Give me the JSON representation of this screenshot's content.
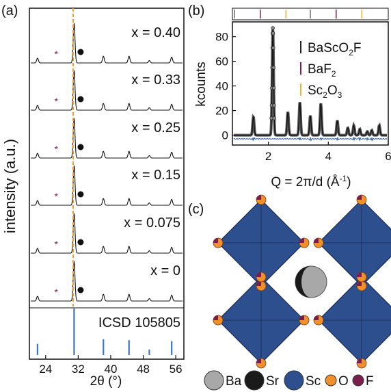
{
  "panels": {
    "a": {
      "label": "(a)",
      "ylabel": "intensity (a.u.)",
      "xlabel": "2θ (°)",
      "xticks": [
        "24",
        "32",
        "40",
        "48",
        "56"
      ],
      "reference_label": "ICSD 105805",
      "sample_labels": [
        "x = 0.40",
        "x = 0.33",
        "x = 0.25",
        "x = 0.15",
        "x = 0.075",
        "x = 0"
      ]
    },
    "b": {
      "label": "(b)",
      "ylabel": "kcounts",
      "xlabel": "Q = 2π/d (Å⁻¹)",
      "yticks": [
        "0",
        "20",
        "40",
        "60",
        "80"
      ],
      "xticks": [
        "2",
        "4",
        "6"
      ],
      "legend": [
        {
          "name": "BaScO2F",
          "color": "#222222"
        },
        {
          "name": "BaF2",
          "color": "#7a1f4d"
        },
        {
          "name": "Sc2O3",
          "color": "#f2b233"
        }
      ]
    },
    "c": {
      "label": "(c)",
      "atom_legend": [
        {
          "name": "Ba",
          "color": "#a8a8a8"
        },
        {
          "name": "Sr",
          "color": "#1a1a1a"
        },
        {
          "name": "Sc",
          "color": "#2d4f8e"
        },
        {
          "name": "O",
          "color": "#f0902a"
        },
        {
          "name": "F",
          "color": "#7a1f4d"
        }
      ]
    }
  },
  "colors": {
    "reference_bars": "#3a78c9",
    "dashed_line": "#f0a030",
    "impurity_star": "#7a1f4d",
    "fit_line": "#2a5aa0",
    "octahedron": "#2d4f8e"
  },
  "chart_data": [
    {
      "type": "line",
      "panel": "a",
      "title": "",
      "xlabel": "2θ (°)",
      "ylabel": "intensity (a.u.)",
      "xlim": [
        20,
        58
      ],
      "series": [
        {
          "name": "x = 0.40",
          "peaks": [
            [
              22,
              0.12
            ],
            [
              31,
              1.0
            ],
            [
              38.2,
              0.17
            ],
            [
              44.5,
              0.17
            ],
            [
              49.5,
              0.06
            ],
            [
              55,
              0.15
            ]
          ]
        },
        {
          "name": "x = 0.33",
          "peaks": [
            [
              22,
              0.12
            ],
            [
              31,
              1.0
            ],
            [
              38.2,
              0.17
            ],
            [
              44.5,
              0.17
            ],
            [
              49.5,
              0.06
            ],
            [
              55,
              0.15
            ]
          ]
        },
        {
          "name": "x = 0.25",
          "peaks": [
            [
              22,
              0.12
            ],
            [
              31,
              1.0
            ],
            [
              38.2,
              0.17
            ],
            [
              44.5,
              0.17
            ],
            [
              49.5,
              0.06
            ],
            [
              55,
              0.15
            ]
          ]
        },
        {
          "name": "x = 0.15",
          "peaks": [
            [
              22,
              0.12
            ],
            [
              31,
              1.0
            ],
            [
              38.2,
              0.17
            ],
            [
              44.5,
              0.17
            ],
            [
              49.5,
              0.06
            ],
            [
              55,
              0.15
            ]
          ]
        },
        {
          "name": "x = 0.075",
          "peaks": [
            [
              22,
              0.12
            ],
            [
              31,
              1.0
            ],
            [
              38.2,
              0.17
            ],
            [
              44.5,
              0.17
            ],
            [
              49.5,
              0.06
            ],
            [
              55,
              0.15
            ]
          ]
        },
        {
          "name": "x = 0",
          "peaks": [
            [
              22,
              0.12
            ],
            [
              31,
              1.0
            ],
            [
              38.2,
              0.17
            ],
            [
              44.5,
              0.17
            ],
            [
              49.5,
              0.06
            ],
            [
              55,
              0.15
            ]
          ]
        }
      ],
      "reference": {
        "name": "ICSD 105805",
        "positions": [
          22,
          31,
          38.2,
          44.5,
          49.5,
          55
        ],
        "intensities": [
          0.24,
          1.0,
          0.34,
          0.32,
          0.12,
          0.3
        ]
      }
    },
    {
      "type": "line",
      "panel": "b",
      "xlabel": "Q = 2π/d (Å⁻¹)",
      "ylabel": "kcounts",
      "xlim": [
        0.8,
        6
      ],
      "ylim": [
        -8,
        92
      ],
      "peaks": [
        [
          1.5,
          15
        ],
        [
          2.15,
          87
        ],
        [
          2.65,
          19
        ],
        [
          3.05,
          27
        ],
        [
          3.4,
          16
        ],
        [
          3.75,
          26
        ],
        [
          4.3,
          12
        ],
        [
          4.65,
          6
        ],
        [
          4.85,
          8
        ],
        [
          5.05,
          5
        ],
        [
          5.3,
          3
        ],
        [
          5.45,
          4
        ],
        [
          5.7,
          8
        ]
      ],
      "tick_phases": [
        "BaScO2F",
        "BaF2",
        "Sc2O3"
      ]
    }
  ]
}
